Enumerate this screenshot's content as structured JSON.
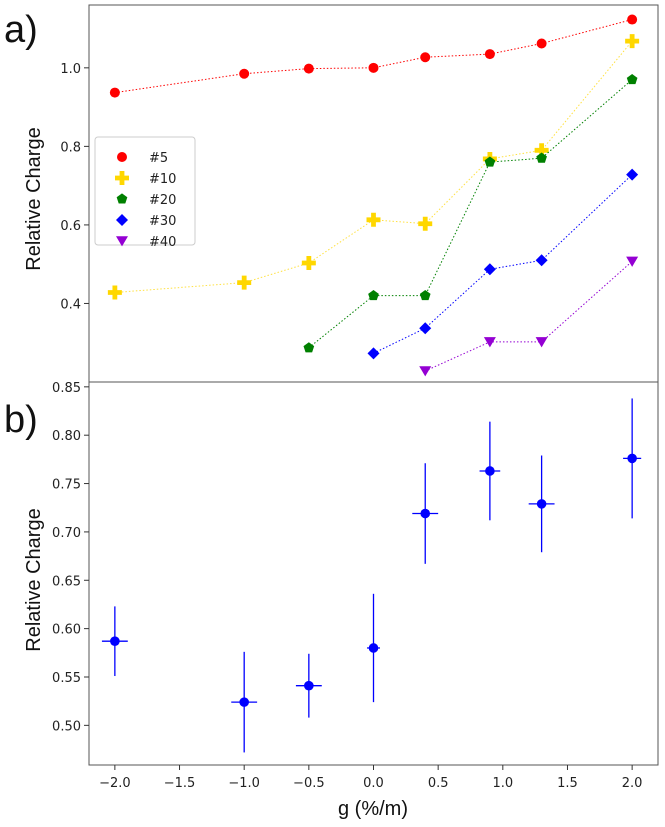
{
  "chart_data": [
    {
      "type": "line",
      "panel_label": "a)",
      "ylabel": "Relative Charge",
      "xlim": [
        -2.2,
        2.2
      ],
      "ylim": [
        0.2,
        1.16
      ],
      "yticks": [
        0.4,
        0.6,
        0.8,
        1.0
      ],
      "ytick_labels": [
        "0.4",
        "0.6",
        "0.8",
        "1.0"
      ],
      "legend_position": "left",
      "series": [
        {
          "name": "#5",
          "color": "#ff0000",
          "marker": "circle",
          "x": [
            -2.0,
            -1.0,
            -0.5,
            0.0,
            0.4,
            0.9,
            1.3,
            2.0
          ],
          "y": [
            0.937,
            0.985,
            0.998,
            1.0,
            1.027,
            1.035,
            1.062,
            1.123
          ]
        },
        {
          "name": "#10",
          "color": "#ffd700",
          "marker": "plus",
          "x": [
            -2.0,
            -1.0,
            -0.5,
            0.0,
            0.4,
            0.9,
            1.3,
            2.0
          ],
          "y": [
            0.428,
            0.453,
            0.503,
            0.613,
            0.603,
            0.768,
            0.79,
            1.068
          ]
        },
        {
          "name": "#20",
          "color": "#008000",
          "marker": "pentagon",
          "x": [
            -0.5,
            0.0,
            0.4,
            0.9,
            1.3,
            2.0
          ],
          "y": [
            0.287,
            0.42,
            0.42,
            0.76,
            0.77,
            0.97
          ]
        },
        {
          "name": "#30",
          "color": "#0000ff",
          "marker": "diamond",
          "x": [
            0.0,
            0.4,
            0.9,
            1.3,
            2.0
          ],
          "y": [
            0.273,
            0.337,
            0.487,
            0.51,
            0.728
          ]
        },
        {
          "name": "#40",
          "color": "#9400d3",
          "marker": "triangle-down",
          "x": [
            0.4,
            0.9,
            1.3,
            2.0
          ],
          "y": [
            0.228,
            0.302,
            0.302,
            0.507
          ]
        }
      ]
    },
    {
      "type": "scatter",
      "panel_label": "b)",
      "ylabel": "Relative Charge",
      "xlabel": "g (%/m)",
      "xlim": [
        -2.2,
        2.2
      ],
      "ylim": [
        0.459,
        0.855
      ],
      "xticks": [
        -2.0,
        -1.5,
        -1.0,
        -0.5,
        0.0,
        0.5,
        1.0,
        1.5,
        2.0
      ],
      "xtick_labels": [
        "−2.0",
        "−1.5",
        "−1.0",
        "−0.5",
        "0.0",
        "0.5",
        "1.0",
        "1.5",
        "2.0"
      ],
      "yticks": [
        0.5,
        0.55,
        0.6,
        0.65,
        0.7,
        0.75,
        0.8,
        0.85
      ],
      "ytick_labels": [
        "0.50",
        "0.55",
        "0.60",
        "0.65",
        "0.70",
        "0.75",
        "0.80",
        "0.85"
      ],
      "color": "#0000ff",
      "x": [
        -2.0,
        -1.0,
        -0.5,
        0.0,
        0.4,
        0.9,
        1.3,
        2.0
      ],
      "y": [
        0.587,
        0.524,
        0.541,
        0.58,
        0.719,
        0.763,
        0.729,
        0.776
      ],
      "yerr": [
        0.036,
        0.052,
        0.033,
        0.056,
        0.052,
        0.051,
        0.05,
        0.062
      ],
      "xerr": [
        0.1,
        0.1,
        0.1,
        0.05,
        0.1,
        0.08,
        0.1,
        0.07
      ]
    }
  ]
}
